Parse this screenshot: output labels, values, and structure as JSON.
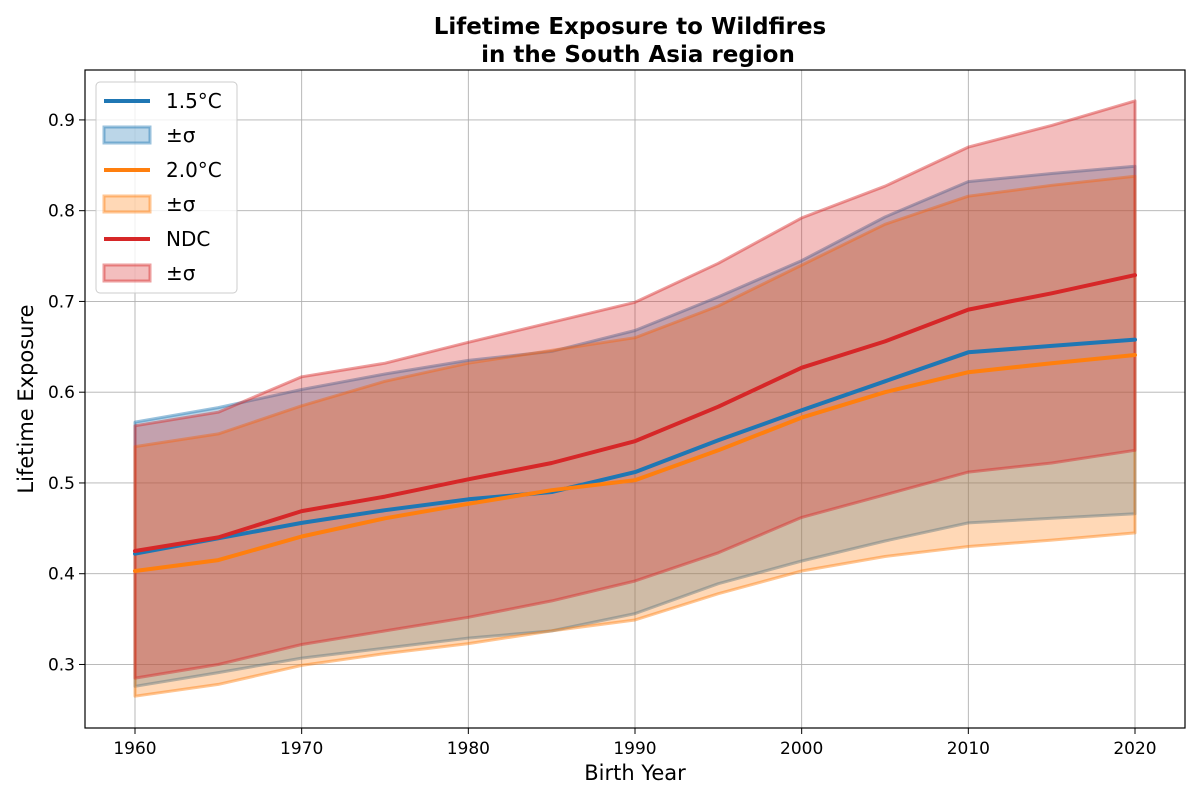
{
  "chart_data": {
    "type": "line",
    "title_line1": "Lifetime Exposure to Wildfires",
    "title_line2": "in the South Asia region",
    "xlabel": "Birth Year",
    "ylabel": "Lifetime Exposure",
    "xlim": [
      1957,
      2023
    ],
    "ylim": [
      0.23,
      0.955
    ],
    "xticks": [
      1960,
      1970,
      1980,
      1990,
      2000,
      2010,
      2020
    ],
    "yticks": [
      0.3,
      0.4,
      0.5,
      0.6,
      0.7,
      0.8,
      0.9
    ],
    "grid": true,
    "legend_position": "top-left",
    "x": [
      1960,
      1965,
      1970,
      1975,
      1980,
      1985,
      1990,
      1995,
      2000,
      2005,
      2010,
      2015,
      2020
    ],
    "series": [
      {
        "name": "1.5°C",
        "band_label": "±σ",
        "color": "#1f77b4",
        "band_color": "#1f77b4",
        "mean": [
          0.422,
          0.439,
          0.456,
          0.47,
          0.482,
          0.49,
          0.512,
          0.547,
          0.58,
          0.612,
          0.644,
          0.651,
          0.658
        ],
        "upper": [
          0.567,
          0.583,
          0.603,
          0.62,
          0.635,
          0.645,
          0.668,
          0.705,
          0.745,
          0.793,
          0.832,
          0.841,
          0.849
        ],
        "lower": [
          0.276,
          0.291,
          0.307,
          0.318,
          0.329,
          0.337,
          0.356,
          0.389,
          0.414,
          0.436,
          0.456,
          0.461,
          0.466
        ]
      },
      {
        "name": "2.0°C",
        "band_label": "±σ",
        "color": "#ff7f0e",
        "band_color": "#ff7f0e",
        "mean": [
          0.403,
          0.415,
          0.441,
          0.461,
          0.477,
          0.492,
          0.503,
          0.536,
          0.572,
          0.6,
          0.622,
          0.632,
          0.641
        ],
        "upper": [
          0.54,
          0.554,
          0.585,
          0.612,
          0.632,
          0.646,
          0.66,
          0.695,
          0.74,
          0.785,
          0.816,
          0.828,
          0.838
        ],
        "lower": [
          0.265,
          0.278,
          0.299,
          0.312,
          0.323,
          0.337,
          0.349,
          0.378,
          0.403,
          0.419,
          0.43,
          0.437,
          0.445
        ]
      },
      {
        "name": "NDC",
        "band_label": "±σ",
        "color": "#d62728",
        "band_color": "#d62728",
        "mean": [
          0.425,
          0.44,
          0.469,
          0.485,
          0.504,
          0.522,
          0.546,
          0.584,
          0.627,
          0.656,
          0.691,
          0.709,
          0.729
        ],
        "upper": [
          0.563,
          0.578,
          0.617,
          0.632,
          0.655,
          0.677,
          0.699,
          0.742,
          0.792,
          0.827,
          0.87,
          0.894,
          0.921
        ],
        "lower": [
          0.285,
          0.3,
          0.322,
          0.337,
          0.352,
          0.37,
          0.392,
          0.423,
          0.462,
          0.487,
          0.512,
          0.522,
          0.536
        ]
      }
    ]
  }
}
